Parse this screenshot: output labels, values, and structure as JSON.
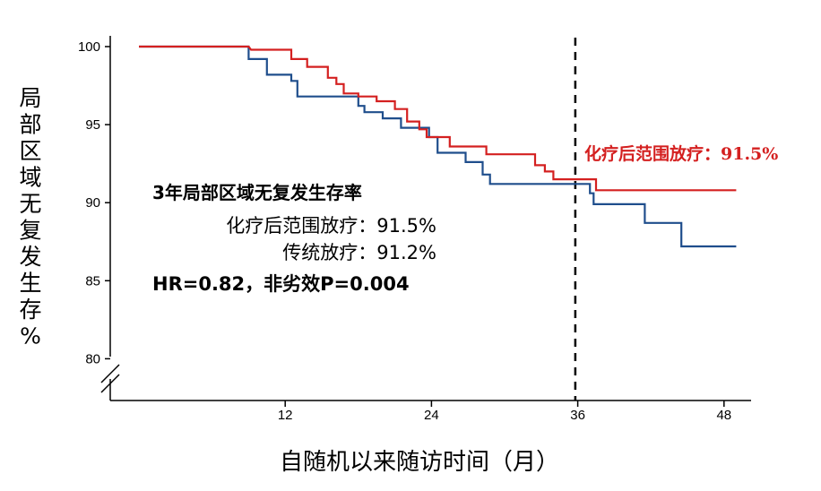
{
  "chart_data": {
    "type": "line",
    "step": true,
    "title": "",
    "xlabel": "自随机以来随访时间（月）",
    "ylabel": "局部区域无复发生存%",
    "xlim": [
      -2,
      50
    ],
    "ylim": [
      78,
      101
    ],
    "x_ticks": [
      12,
      24,
      36,
      48
    ],
    "y_ticks": [
      80,
      85,
      90,
      95,
      100
    ],
    "axis_break": true,
    "reference_line": {
      "x": 35.8,
      "style": "dashed",
      "color": "#000000"
    },
    "series": [
      {
        "name": "化疗后范围放疗",
        "color": "#d42020",
        "points": [
          [
            0,
            100
          ],
          [
            9,
            100
          ],
          [
            9.2,
            99.8
          ],
          [
            12.5,
            99.8
          ],
          [
            12.5,
            99.2
          ],
          [
            13.8,
            99.2
          ],
          [
            13.8,
            98.7
          ],
          [
            15.5,
            98.7
          ],
          [
            15.5,
            98
          ],
          [
            16.2,
            98
          ],
          [
            16.2,
            97.6
          ],
          [
            16.8,
            97.6
          ],
          [
            16.8,
            97
          ],
          [
            18,
            97
          ],
          [
            18,
            96.8
          ],
          [
            19.5,
            96.8
          ],
          [
            19.5,
            96.5
          ],
          [
            21,
            96.5
          ],
          [
            21,
            96
          ],
          [
            22,
            96
          ],
          [
            22,
            95.2
          ],
          [
            23,
            95.2
          ],
          [
            23,
            94.7
          ],
          [
            23.6,
            94.7
          ],
          [
            23.6,
            94.2
          ],
          [
            25.5,
            94.2
          ],
          [
            25.5,
            93.6
          ],
          [
            28.5,
            93.6
          ],
          [
            28.5,
            93.1
          ],
          [
            32.5,
            93.1
          ],
          [
            32.5,
            92.4
          ],
          [
            33.3,
            92.4
          ],
          [
            33.3,
            92
          ],
          [
            34,
            92
          ],
          [
            34,
            91.5
          ],
          [
            37.5,
            91.5
          ],
          [
            37.5,
            90.8
          ],
          [
            49,
            90.8
          ]
        ]
      },
      {
        "name": "传统放疗",
        "color": "#1f4e8c",
        "points": [
          [
            0,
            100
          ],
          [
            9,
            100
          ],
          [
            9,
            99.2
          ],
          [
            10.5,
            99.2
          ],
          [
            10.5,
            98.2
          ],
          [
            12.5,
            98.2
          ],
          [
            12.5,
            97.8
          ],
          [
            13,
            97.8
          ],
          [
            13,
            96.8
          ],
          [
            18,
            96.8
          ],
          [
            18,
            96.2
          ],
          [
            18.5,
            96.2
          ],
          [
            18.5,
            95.8
          ],
          [
            20,
            95.8
          ],
          [
            20,
            95.4
          ],
          [
            21.5,
            95.4
          ],
          [
            21.5,
            94.8
          ],
          [
            23.8,
            94.8
          ],
          [
            23.8,
            94.2
          ],
          [
            24.5,
            94.2
          ],
          [
            24.5,
            93.2
          ],
          [
            26.8,
            93.2
          ],
          [
            26.8,
            92.6
          ],
          [
            28.2,
            92.6
          ],
          [
            28.2,
            91.8
          ],
          [
            28.8,
            91.8
          ],
          [
            28.8,
            91.2
          ],
          [
            37,
            91.2
          ],
          [
            37,
            90.6
          ],
          [
            37.3,
            90.6
          ],
          [
            37.3,
            89.9
          ],
          [
            41.5,
            89.9
          ],
          [
            41.5,
            88.7
          ],
          [
            44.5,
            88.7
          ],
          [
            44.5,
            87.2
          ],
          [
            49,
            87.2
          ]
        ]
      }
    ],
    "legend_title": "3年局部区域无复发生存率",
    "legend_entries": [
      "化疗后范围放疗：91.5%",
      "传统放疗：91.2%"
    ],
    "stats": "HR=0.82，非劣效P=0.004",
    "callout": "化疗后范围放疗：91.5%"
  }
}
